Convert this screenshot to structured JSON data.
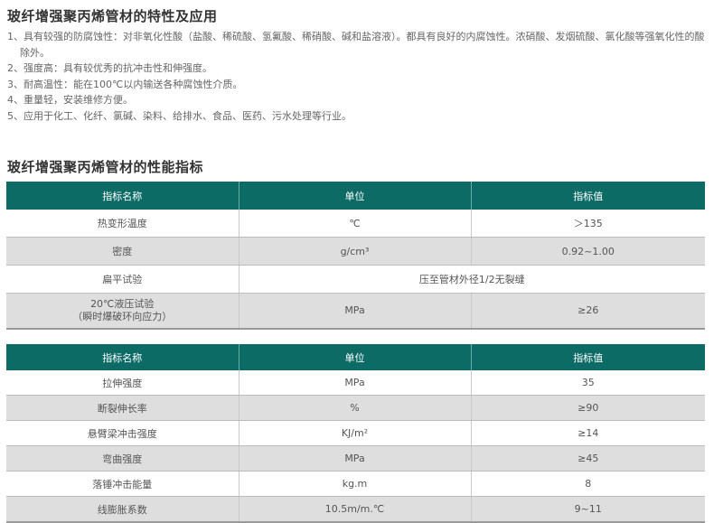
{
  "section1": {
    "title": "玻纤增强聚丙烯管材的特性及应用",
    "items": [
      "1、具有较强的防腐蚀性：对非氧化性酸（盐酸、稀硫酸、氢氟酸、稀硝酸、碱和盐溶液）。都具有良好的内腐蚀性。浓硝酸、发烟硫酸、氯化酸等强氧化性的酸除外。",
      "2、强度高：具有较优秀的抗冲击性和伸强度。",
      "3、耐高温性：能在100℃以内输送各种腐蚀性介质。",
      "4、重量轻，安装维修方便。",
      "5、应用于化工、化纤、氯碱、染料、给排水、食品、医药、污水处理等行业。"
    ]
  },
  "section2": {
    "title": "玻纤增强聚丙烯管材的性能指标"
  },
  "table1": {
    "headers": [
      "指标名称",
      "单位",
      "指标值"
    ],
    "rows": [
      [
        "热变形温度",
        "℃",
        "＞135"
      ],
      [
        "密度",
        "g/cm³",
        "0.92~1.00"
      ],
      [
        "扁平试验",
        "压至管材外径1/2无裂缝"
      ],
      [
        "20℃液压试验",
        "（瞬时爆破环向应力）",
        "MPa",
        "≥26"
      ]
    ]
  },
  "table2": {
    "headers": [
      "指标名称",
      "单位",
      "指标值"
    ],
    "rows": [
      [
        "拉伸强度",
        "MPa",
        "35"
      ],
      [
        "断裂伸长率",
        "%",
        "≥90"
      ],
      [
        "悬臂梁冲击强度",
        "KJ/m²",
        "≥14"
      ],
      [
        "弯曲强度",
        "MPa",
        "≥45"
      ],
      [
        "落锤冲击能量",
        "kg.m",
        "8"
      ],
      [
        "线膨胀系数",
        "10.5m/m.℃",
        "9~11"
      ]
    ]
  },
  "colors": {
    "header": "#0d6b66",
    "stripe": "#dedede"
  }
}
